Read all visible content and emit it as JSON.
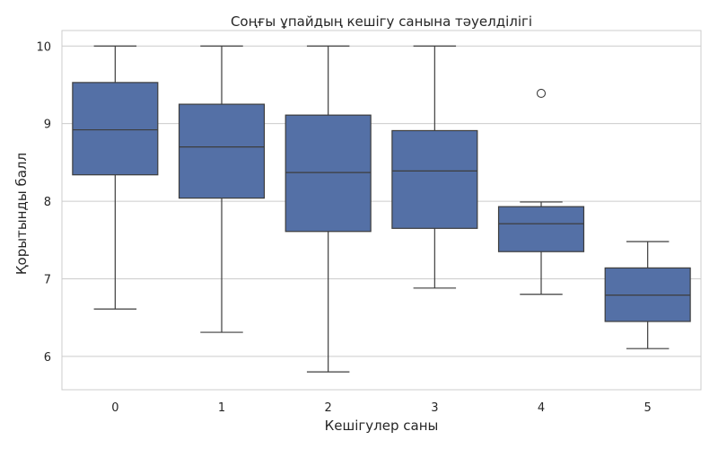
{
  "chart_data": {
    "type": "box",
    "title": "Соңғы ұпайдың кешігу санына тәуелділігі",
    "xlabel": "Кешігулер саны",
    "ylabel": "Қорытынды балл",
    "ylim": [
      5.57,
      10.2
    ],
    "yticks": [
      6,
      7,
      8,
      9,
      10
    ],
    "grid": "horizontal",
    "box_color": "#5470a6",
    "line_color": "#3d3d3d",
    "categories": [
      "0",
      "1",
      "2",
      "3",
      "4",
      "5"
    ],
    "boxes": [
      {
        "category": "0",
        "whisker_low": 6.61,
        "q1": 8.34,
        "median": 8.92,
        "q3": 9.53,
        "whisker_high": 10.0,
        "outliers": []
      },
      {
        "category": "1",
        "whisker_low": 6.31,
        "q1": 8.04,
        "median": 8.7,
        "q3": 9.25,
        "whisker_high": 10.0,
        "outliers": []
      },
      {
        "category": "2",
        "whisker_low": 5.8,
        "q1": 7.61,
        "median": 8.37,
        "q3": 9.11,
        "whisker_high": 10.0,
        "outliers": []
      },
      {
        "category": "3",
        "whisker_low": 6.88,
        "q1": 7.65,
        "median": 8.39,
        "q3": 8.91,
        "whisker_high": 10.0,
        "outliers": []
      },
      {
        "category": "4",
        "whisker_low": 6.8,
        "q1": 7.35,
        "median": 7.71,
        "q3": 7.93,
        "whisker_high": 7.99,
        "outliers": [
          9.39
        ]
      },
      {
        "category": "5",
        "whisker_low": 6.1,
        "q1": 6.45,
        "median": 6.79,
        "q3": 7.14,
        "whisker_high": 7.48,
        "outliers": []
      }
    ]
  }
}
